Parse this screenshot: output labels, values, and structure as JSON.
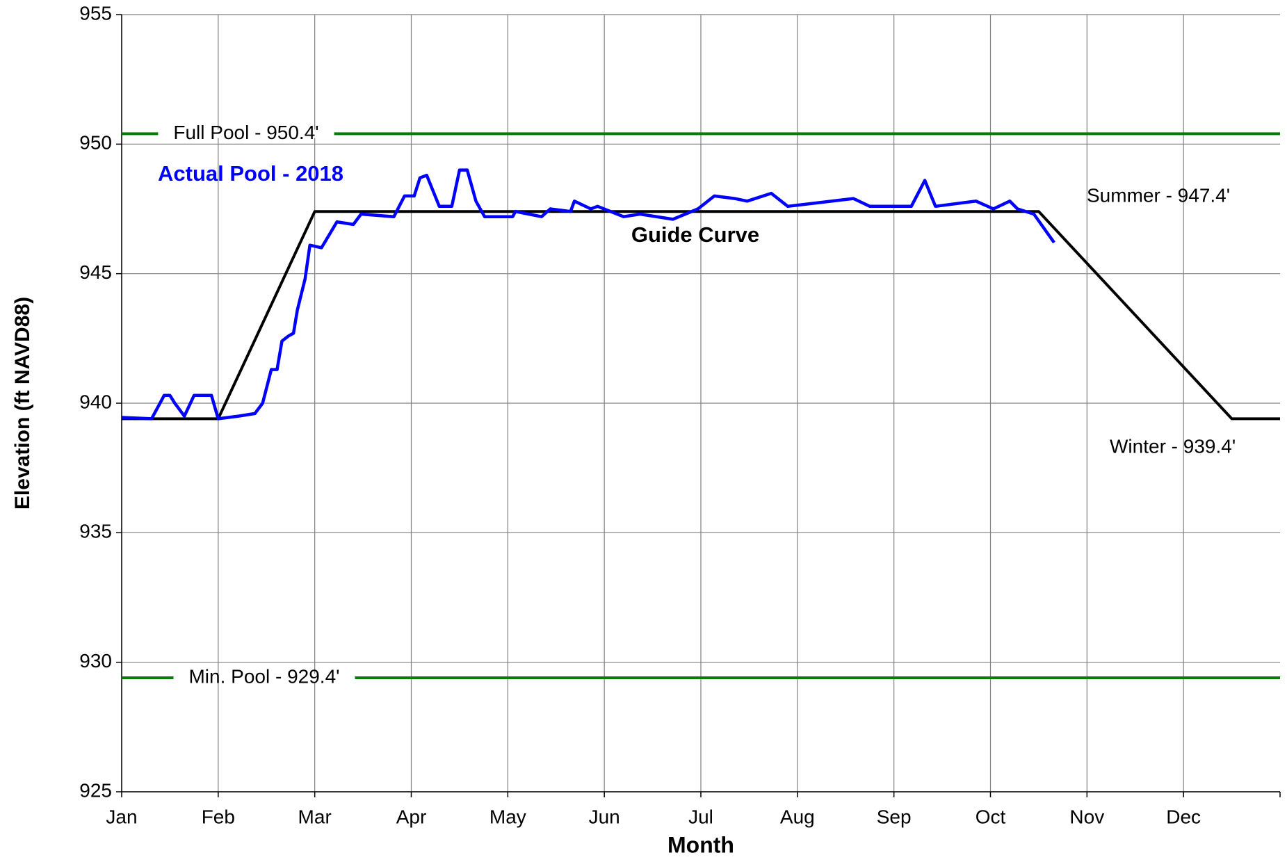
{
  "chart_data": {
    "type": "line",
    "x_label": "Month",
    "y_label": "Elevation (ft NAVD88)",
    "xlim": [
      0,
      12
    ],
    "xticks": [
      {
        "value": 0,
        "label": "Jan"
      },
      {
        "value": 1,
        "label": "Feb"
      },
      {
        "value": 2,
        "label": "Mar"
      },
      {
        "value": 3,
        "label": "Apr"
      },
      {
        "value": 4,
        "label": "May"
      },
      {
        "value": 5,
        "label": "Jun"
      },
      {
        "value": 6,
        "label": "Jul"
      },
      {
        "value": 7,
        "label": "Aug"
      },
      {
        "value": 8,
        "label": "Sep"
      },
      {
        "value": 9,
        "label": "Oct"
      },
      {
        "value": 10,
        "label": "Nov"
      },
      {
        "value": 11,
        "label": "Dec"
      }
    ],
    "ylim": [
      925,
      955
    ],
    "yticks": [
      925,
      930,
      935,
      940,
      945,
      950,
      955
    ],
    "grid": true,
    "series": [
      {
        "name": "Guide Curve",
        "color": "#000000",
        "x": [
          0,
          1,
          2,
          9.5,
          11.5,
          12
        ],
        "values": [
          939.4,
          939.4,
          947.4,
          947.4,
          939.4,
          939.4
        ]
      },
      {
        "name": "Actual Pool - 2018",
        "color": "#0000ff",
        "x": [
          0,
          0.31,
          0.44,
          0.5,
          0.55,
          0.65,
          0.75,
          0.93,
          1.0,
          1.21,
          1.38,
          1.46,
          1.55,
          1.61,
          1.66,
          1.73,
          1.78,
          1.82,
          1.9,
          1.95,
          2.07,
          2.23,
          2.4,
          2.48,
          2.82,
          2.93,
          3.03,
          3.09,
          3.16,
          3.29,
          3.42,
          3.5,
          3.58,
          3.67,
          3.76,
          4.05,
          4.08,
          4.35,
          4.44,
          4.65,
          4.69,
          4.86,
          4.93,
          5.2,
          5.37,
          5.71,
          5.97,
          6.14,
          6.35,
          6.48,
          6.73,
          6.9,
          7.58,
          7.75,
          8.18,
          8.32,
          8.43,
          8.85,
          9.03,
          9.2,
          9.28,
          9.45,
          9.66
        ],
        "values": [
          939.45,
          939.4,
          940.3,
          940.3,
          940.0,
          939.5,
          940.3,
          940.3,
          939.4,
          939.5,
          939.6,
          940.0,
          941.3,
          941.3,
          942.4,
          942.6,
          942.7,
          943.6,
          944.8,
          946.1,
          946.0,
          947.0,
          946.9,
          947.3,
          947.2,
          948.0,
          948.0,
          948.7,
          948.8,
          947.6,
          947.6,
          949.0,
          949.0,
          947.8,
          947.2,
          947.2,
          947.4,
          947.2,
          947.5,
          947.4,
          947.8,
          947.5,
          947.6,
          947.2,
          947.3,
          947.1,
          947.5,
          948.0,
          947.9,
          947.8,
          948.1,
          947.6,
          947.9,
          947.6,
          947.6,
          948.6,
          947.6,
          947.8,
          947.5,
          947.8,
          947.5,
          947.3,
          946.2
        ]
      }
    ],
    "reference_lines": [
      {
        "label": "Full Pool - 950.4'",
        "value": 950.4,
        "color": "#008000"
      },
      {
        "label": "Min. Pool - 929.4'",
        "value": 929.4,
        "color": "#008000"
      }
    ],
    "annotations": [
      "Summer - 947.4'",
      "Winter - 939.4'"
    ]
  }
}
